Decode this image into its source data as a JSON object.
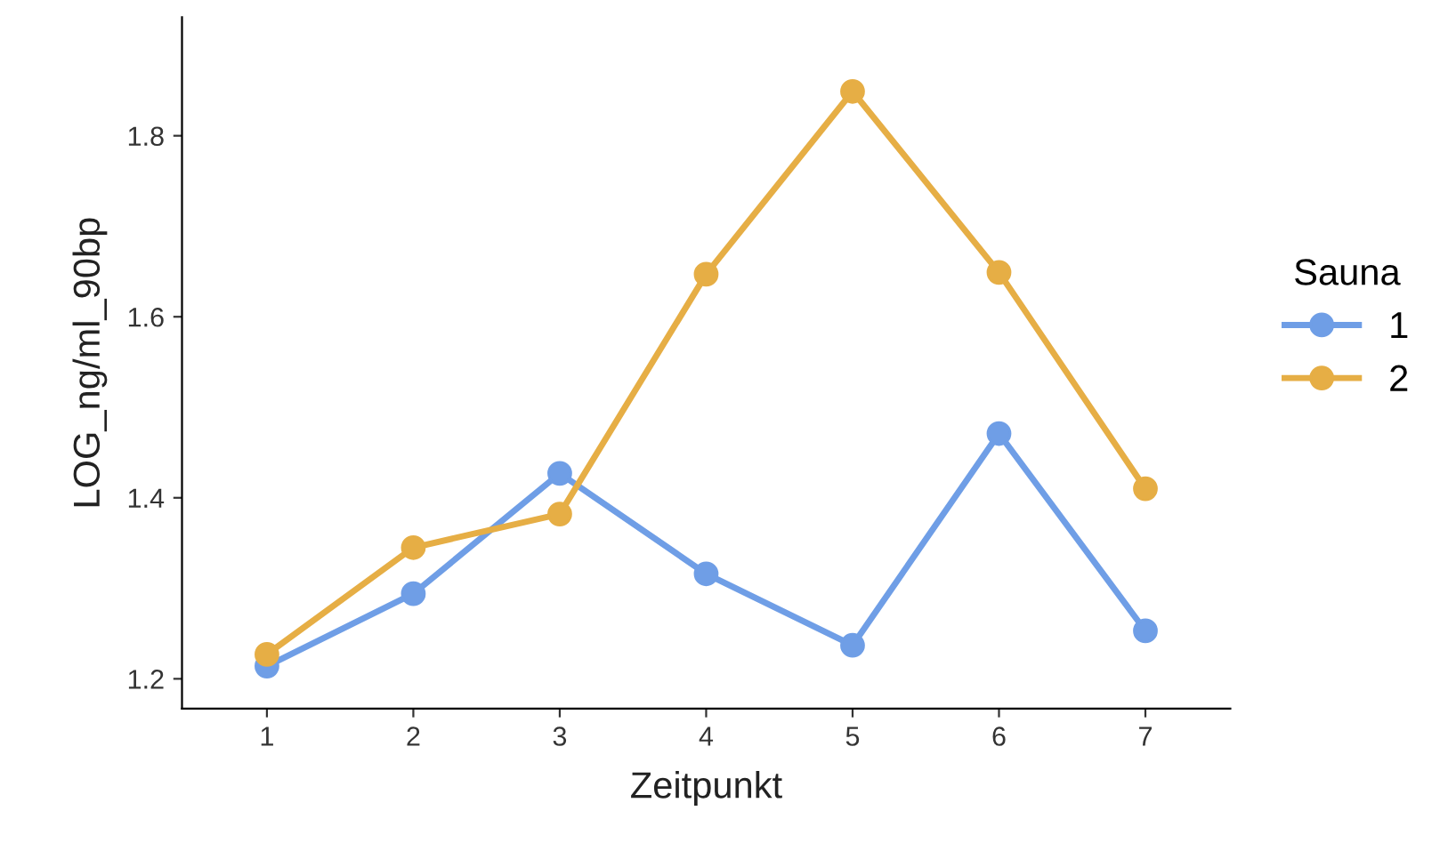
{
  "chart_data": {
    "type": "line",
    "xlabel": "Zeitpunkt",
    "ylabel": "LOG_ng/ml_90bp",
    "legend_title": "Sauna",
    "x": [
      1,
      2,
      3,
      4,
      5,
      6,
      7
    ],
    "series": [
      {
        "name": "1",
        "color": "#6f9ee6",
        "values": [
          1.214,
          1.294,
          1.427,
          1.316,
          1.237,
          1.471,
          1.253
        ]
      },
      {
        "name": "2",
        "color": "#e6ae45",
        "values": [
          1.227,
          1.345,
          1.382,
          1.647,
          1.849,
          1.649,
          1.41
        ]
      }
    ],
    "xlim": [
      0.42,
      7.58
    ],
    "xticks": [
      1,
      2,
      3,
      4,
      5,
      6,
      7
    ],
    "ylim": [
      1.167,
      1.931
    ],
    "yticks": [
      1.2,
      1.4,
      1.6,
      1.8
    ],
    "grid": false,
    "legend": "right",
    "marker": "circle",
    "line_style": "solid"
  }
}
